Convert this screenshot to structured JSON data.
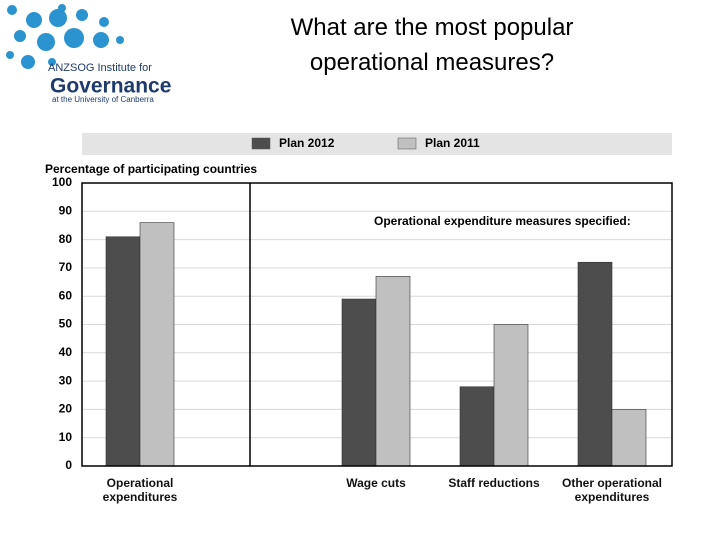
{
  "header": {
    "title": "What are the most popular operational measures?",
    "logo": {
      "line1": "ANZSOG Institute for",
      "line2": "Governance",
      "line3": "at the University of Canberra"
    }
  },
  "chart_data": {
    "type": "bar",
    "y_label": "Percentage of participating countries",
    "annotation": "Operational expenditure measures specified:",
    "categories": [
      "Operational expenditures",
      null,
      "Wage cuts",
      "Staff reductions",
      "Other operational expenditures"
    ],
    "series": [
      {
        "name": "Plan 2012",
        "color": "#4d4d4d",
        "values": [
          81,
          null,
          59,
          28,
          72
        ]
      },
      {
        "name": "Plan 2011",
        "color": "#c0c0c0",
        "values": [
          86,
          null,
          67,
          50,
          20
        ]
      }
    ],
    "ylim": [
      0,
      100
    ],
    "yticks": [
      0,
      10,
      20,
      30,
      40,
      50,
      60,
      70,
      80,
      90,
      100
    ],
    "grid": true,
    "legend": "top"
  }
}
